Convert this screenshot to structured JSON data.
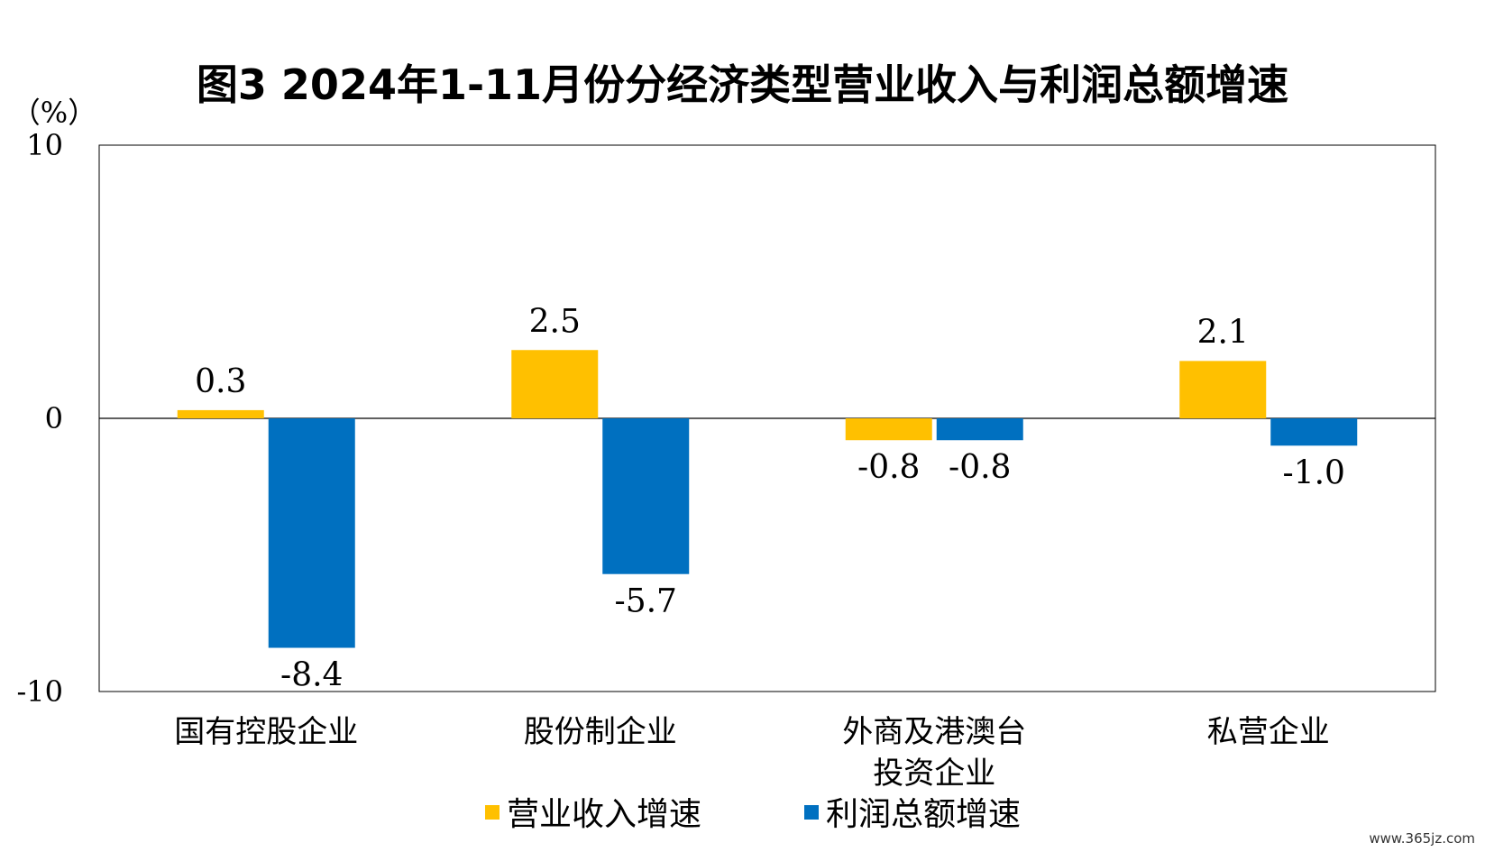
{
  "chart_data": {
    "type": "bar",
    "title": "图3  2024年1-11月份分经济类型营业收入与利润总额增速",
    "ylabel": "（%）",
    "ylim": [
      -10,
      10
    ],
    "yticks": [
      "10",
      "0",
      "-10"
    ],
    "categories": [
      [
        "国有控股企业"
      ],
      [
        "股份制企业"
      ],
      [
        "外商及港澳台",
        "投资企业"
      ],
      [
        "私营企业"
      ]
    ],
    "series": [
      {
        "name": "营业收入增速",
        "color": "#FFC000",
        "values": [
          0.3,
          2.5,
          -0.8,
          2.1
        ],
        "labels": [
          "0.3",
          "2.5",
          "-0.8",
          "2.1"
        ]
      },
      {
        "name": "利润总额增速",
        "color": "#0070C0",
        "values": [
          -8.4,
          -5.7,
          -0.8,
          -1.0
        ],
        "labels": [
          "-8.4",
          "-5.7",
          "-0.8",
          "-1.0"
        ]
      }
    ],
    "grid": false,
    "legend": "bottom-center"
  },
  "watermark": "www.365jz.com"
}
